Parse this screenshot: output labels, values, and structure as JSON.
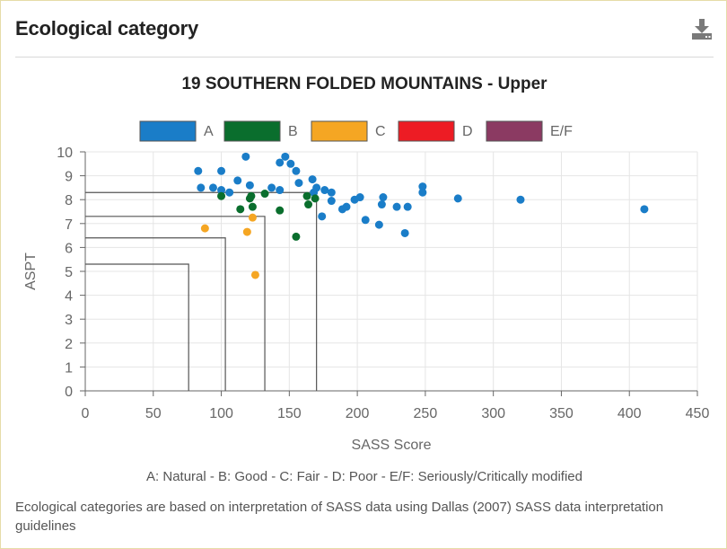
{
  "panel": {
    "title": "Ecological category",
    "download_icon": "download-icon"
  },
  "footnotes": {
    "legend_key": "A: Natural - B: Good - C: Fair - D: Poor - E/F: Seriously/Critically modified",
    "note": "Ecological categories are based on interpretation of SASS data using Dallas (2007) SASS data interpretation guidelines"
  },
  "chart_data": {
    "type": "scatter",
    "title": "19 SOUTHERN FOLDED MOUNTAINS - Upper",
    "xlabel": "SASS Score",
    "ylabel": "ASPT",
    "xlim": [
      0,
      450
    ],
    "ylim": [
      0,
      10
    ],
    "xticks": [
      0,
      50,
      100,
      150,
      200,
      250,
      300,
      350,
      400,
      450
    ],
    "yticks": [
      0,
      1,
      2,
      3,
      4,
      5,
      6,
      7,
      8,
      9,
      10
    ],
    "grid": true,
    "legend_position": "top",
    "category_boundaries": [
      {
        "category": "A",
        "sass": 170,
        "aspt": 8.3
      },
      {
        "category": "B",
        "sass": 132,
        "aspt": 7.3
      },
      {
        "category": "C",
        "sass": 103,
        "aspt": 6.4
      },
      {
        "category": "D",
        "sass": 76,
        "aspt": 5.3
      }
    ],
    "series": [
      {
        "name": "A",
        "color": "#1a7dc8",
        "points": [
          [
            83,
            9.2
          ],
          [
            85,
            8.5
          ],
          [
            94,
            8.5
          ],
          [
            100,
            9.2
          ],
          [
            100,
            8.4
          ],
          [
            106,
            8.3
          ],
          [
            112,
            8.8
          ],
          [
            118,
            9.8
          ],
          [
            121,
            8.6
          ],
          [
            137,
            8.5
          ],
          [
            143,
            9.55
          ],
          [
            143,
            8.4
          ],
          [
            147,
            9.8
          ],
          [
            151,
            9.5
          ],
          [
            155,
            9.2
          ],
          [
            157,
            8.7
          ],
          [
            167,
            8.85
          ],
          [
            168,
            8.3
          ],
          [
            170,
            8.5
          ],
          [
            174,
            7.3
          ],
          [
            176,
            8.4
          ],
          [
            181,
            7.95
          ],
          [
            181,
            8.3
          ],
          [
            189,
            7.6
          ],
          [
            192,
            7.7
          ],
          [
            198,
            8.0
          ],
          [
            202,
            8.1
          ],
          [
            206,
            7.15
          ],
          [
            216,
            6.95
          ],
          [
            218,
            7.8
          ],
          [
            219,
            8.1
          ],
          [
            229,
            7.7
          ],
          [
            235,
            6.6
          ],
          [
            237,
            7.7
          ],
          [
            248,
            8.3
          ],
          [
            248,
            8.55
          ],
          [
            274,
            8.05
          ],
          [
            320,
            8.0
          ],
          [
            411,
            7.6
          ]
        ]
      },
      {
        "name": "B",
        "color": "#0a6e2d",
        "points": [
          [
            100,
            8.15
          ],
          [
            114,
            7.6
          ],
          [
            121,
            8.05
          ],
          [
            122,
            8.15
          ],
          [
            123,
            7.7
          ],
          [
            132,
            8.25
          ],
          [
            143,
            7.55
          ],
          [
            155,
            6.45
          ],
          [
            163,
            8.15
          ],
          [
            164,
            7.8
          ],
          [
            169,
            8.05
          ]
        ]
      },
      {
        "name": "C",
        "color": "#f5a623",
        "points": [
          [
            88,
            6.8
          ],
          [
            119,
            6.65
          ],
          [
            123,
            7.25
          ],
          [
            125,
            4.85
          ]
        ]
      },
      {
        "name": "D",
        "color": "#ed1c24",
        "points": []
      },
      {
        "name": "E/F",
        "color": "#8b3a62",
        "points": []
      }
    ]
  }
}
